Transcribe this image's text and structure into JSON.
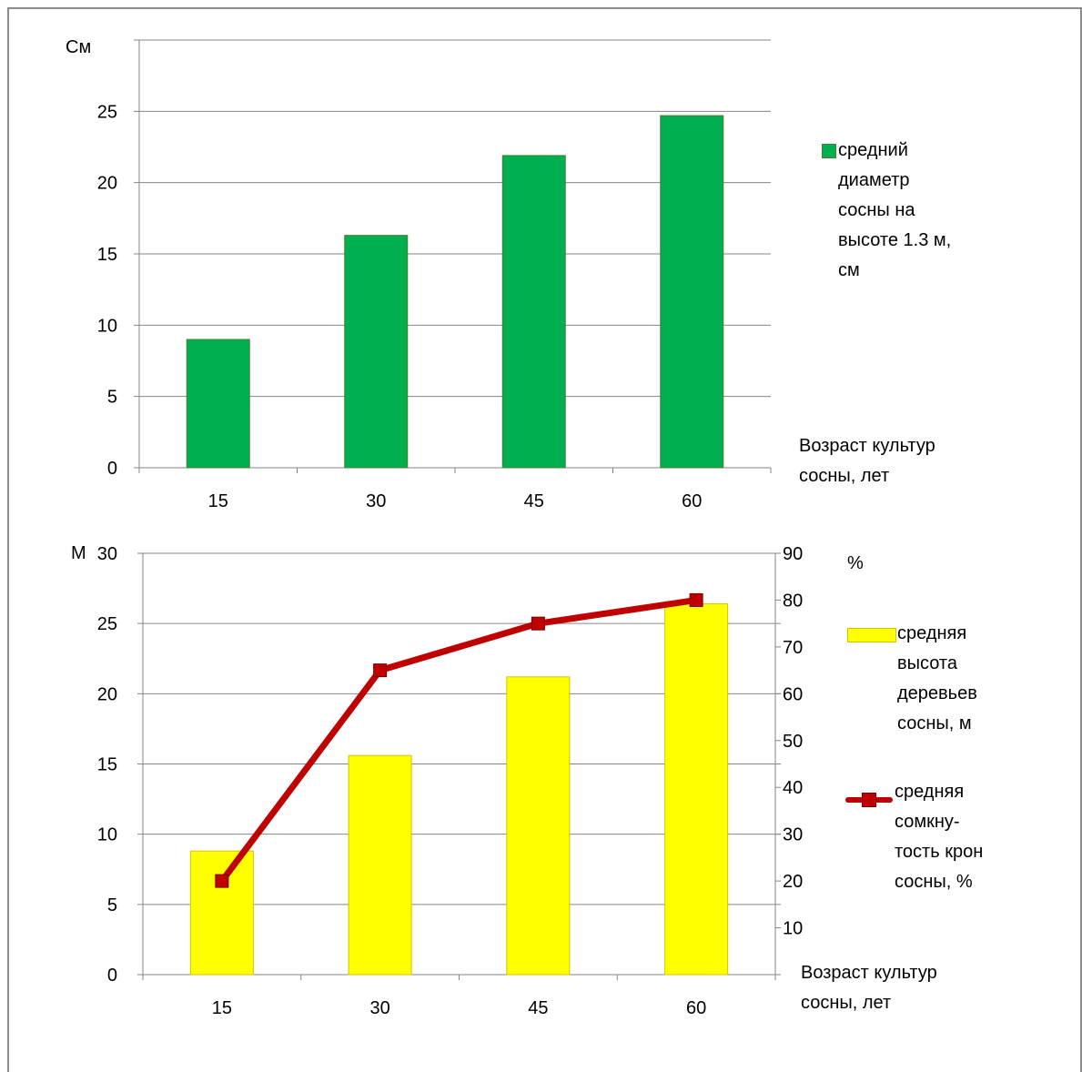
{
  "chart_data": [
    {
      "type": "bar",
      "ylabel": "См",
      "xlabel": "Возраст культур\nсосны, лет",
      "categories": [
        "15",
        "30",
        "45",
        "60"
      ],
      "ylim": [
        0,
        30
      ],
      "yticks": [
        0,
        5,
        10,
        15,
        20,
        25
      ],
      "grid": true,
      "legend": "right",
      "series": [
        {
          "name": "средний диаметр сосны на высоте 1.3 м, см",
          "legend_text": "средний\nдиаметр\nсосны на\nвысоте 1.3 м,\nсм",
          "values": [
            9,
            16.3,
            21.9,
            24.7
          ],
          "color": "#00b050",
          "border": "#4f7b2c"
        }
      ]
    },
    {
      "type": "bar+line",
      "ylabel": "М",
      "y2label": "%",
      "xlabel": "Возраст культур\nсосны, лет",
      "categories": [
        "15",
        "30",
        "45",
        "60"
      ],
      "ylim": [
        0,
        30
      ],
      "yticks": [
        0,
        5,
        10,
        15,
        20,
        25,
        30
      ],
      "y2lim": [
        0,
        90
      ],
      "y2ticks": [
        10,
        20,
        30,
        40,
        50,
        60,
        70,
        80,
        90
      ],
      "grid": true,
      "legend": "right",
      "series": [
        {
          "name": "средняя высота деревьев сосны, м",
          "legend_text": "средняя\nвысота\nдеревьев\nсосны, м",
          "type": "bar",
          "axis": "left",
          "values": [
            8.8,
            15.6,
            21.2,
            26.4
          ],
          "color": "#ffff00",
          "border": "#d4c400"
        },
        {
          "name": "средняя сомкнутость крон сосны, %",
          "legend_text": "средняя\nсомкну-\nтость крон\nсосны, %",
          "type": "line",
          "axis": "right",
          "values": [
            20,
            65,
            75,
            80
          ],
          "color": "#c00000",
          "marker": "#c00000"
        }
      ]
    }
  ]
}
